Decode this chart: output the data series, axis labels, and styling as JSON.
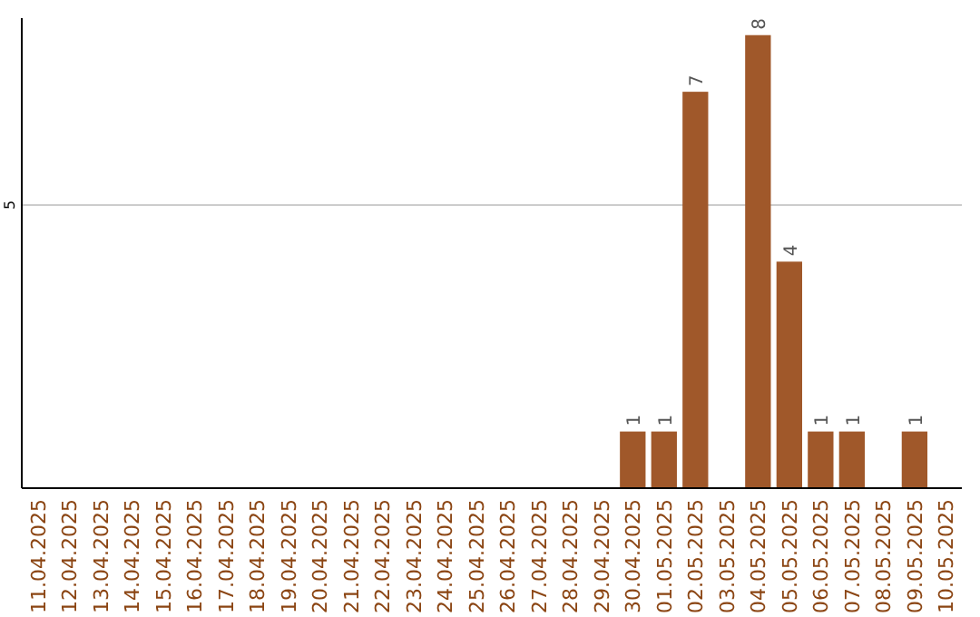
{
  "chart_data": {
    "type": "bar",
    "categories": [
      "11.04.2025",
      "12.04.2025",
      "13.04.2025",
      "14.04.2025",
      "15.04.2025",
      "16.04.2025",
      "17.04.2025",
      "18.04.2025",
      "19.04.2025",
      "20.04.2025",
      "21.04.2025",
      "22.04.2025",
      "23.04.2025",
      "24.04.2025",
      "25.04.2025",
      "26.04.2025",
      "27.04.2025",
      "28.04.2025",
      "29.04.2025",
      "30.04.2025",
      "01.05.2025",
      "02.05.2025",
      "03.05.2025",
      "04.05.2025",
      "05.05.2025",
      "06.05.2025",
      "07.05.2025",
      "08.05.2025",
      "09.05.2025",
      "10.05.2025"
    ],
    "values": [
      null,
      null,
      null,
      null,
      null,
      null,
      null,
      null,
      null,
      null,
      null,
      null,
      null,
      null,
      null,
      null,
      null,
      null,
      null,
      1,
      1,
      7,
      null,
      8,
      4,
      1,
      1,
      null,
      1,
      null
    ],
    "color": "#a0582a",
    "ylim": [
      0,
      8.3
    ],
    "yticks": [
      5
    ],
    "grid": "y",
    "data_labels": true
  }
}
